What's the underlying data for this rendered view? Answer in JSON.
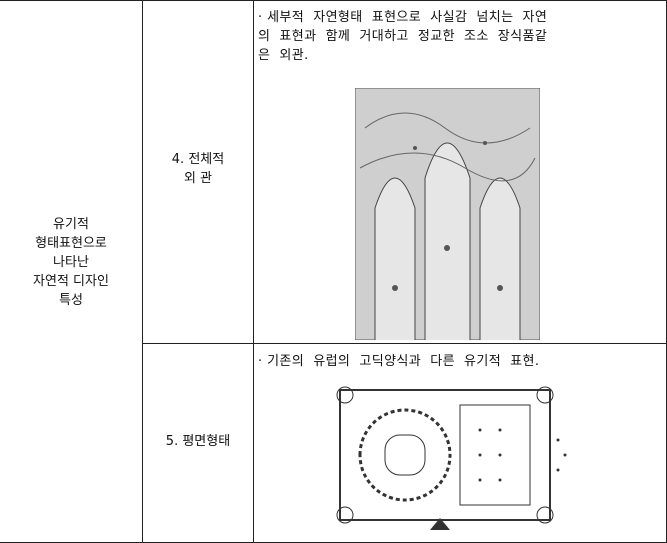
{
  "table": {
    "category": [
      "유기적",
      "형태표현으로",
      "나타난",
      "자연적 디자인",
      "특성"
    ],
    "rows": [
      {
        "label": [
          "4. 전체적",
          "외  관"
        ],
        "description": [
          "· 세부적  자연형태  표현으로  사실감  넘치는  자연",
          "의  표현과  함께  거대하고  정교한  조소  장식품같",
          "은  외관."
        ]
      },
      {
        "label": [
          "5. 평면형태"
        ],
        "description": [
          "· 기존의  유럽의  고딕양식과  다른  유기적  표현."
        ]
      }
    ]
  }
}
